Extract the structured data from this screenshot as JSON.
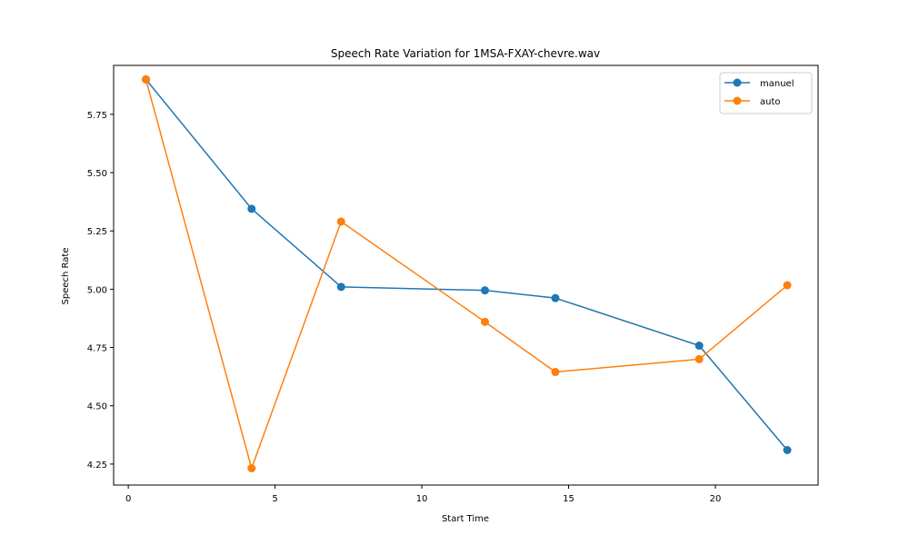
{
  "chart_data": {
    "type": "line",
    "title": "Speech Rate Variation for 1MSA-FXAY-chevre.wav",
    "xlabel": "Start Time",
    "ylabel": "Speech Rate",
    "xlim": [
      -0.5,
      23.5
    ],
    "ylim": [
      4.16,
      5.96
    ],
    "xticks": [
      0,
      5,
      10,
      15,
      20
    ],
    "yticks": [
      4.25,
      4.5,
      4.75,
      5.0,
      5.25,
      5.5,
      5.75
    ],
    "ytick_labels": [
      "4.25",
      "4.50",
      "4.75",
      "5.00",
      "5.25",
      "5.50",
      "5.75"
    ],
    "grid": false,
    "legend_position": "upper right",
    "series": [
      {
        "name": "manuel",
        "color": "#1f77b4",
        "marker": "circle",
        "x": [
          0.6,
          4.2,
          7.25,
          12.15,
          14.55,
          19.45,
          22.45
        ],
        "y": [
          5.9,
          5.345,
          5.01,
          4.995,
          4.962,
          4.758,
          4.31
        ]
      },
      {
        "name": "auto",
        "color": "#ff7f0e",
        "marker": "circle",
        "x": [
          0.6,
          4.2,
          7.25,
          12.15,
          14.55,
          19.45,
          22.45
        ],
        "y": [
          5.9,
          4.232,
          5.29,
          4.86,
          4.645,
          4.7,
          5.017
        ]
      }
    ]
  }
}
